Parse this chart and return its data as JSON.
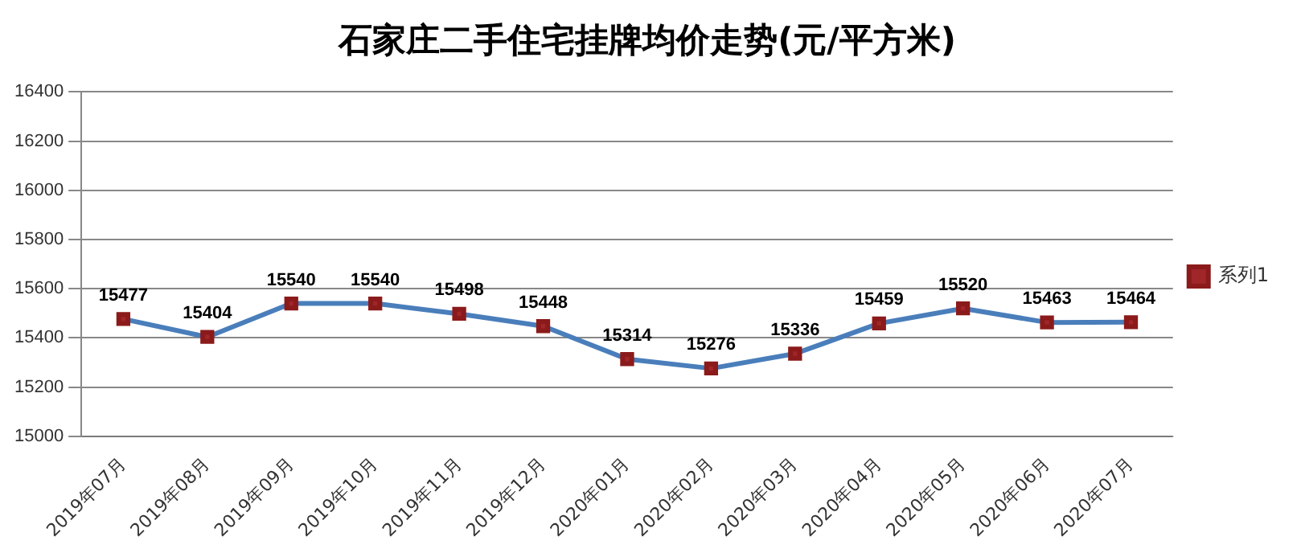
{
  "chart_data": {
    "type": "line",
    "title": "石家庄二手住宅挂牌均价走势(元/平方米)",
    "categories": [
      "2019年07月",
      "2019年08月",
      "2019年09月",
      "2019年10月",
      "2019年11月",
      "2019年12月",
      "2020年01月",
      "2020年02月",
      "2020年03月",
      "2020年04月",
      "2020年05月",
      "2020年06月",
      "2020年07月"
    ],
    "series": [
      {
        "name": "系列1",
        "color": "#4a7ebb",
        "values": [
          15477,
          15404,
          15540,
          15540,
          15498,
          15448,
          15314,
          15276,
          15336,
          15459,
          15520,
          15463,
          15464
        ]
      }
    ],
    "ylim": [
      15000,
      16400
    ],
    "yticks": [
      15000,
      15200,
      15400,
      15600,
      15800,
      16000,
      16200,
      16400
    ],
    "grid": "y",
    "legend": "right",
    "marker": "square",
    "line_style": "solid",
    "data_labels": true
  }
}
